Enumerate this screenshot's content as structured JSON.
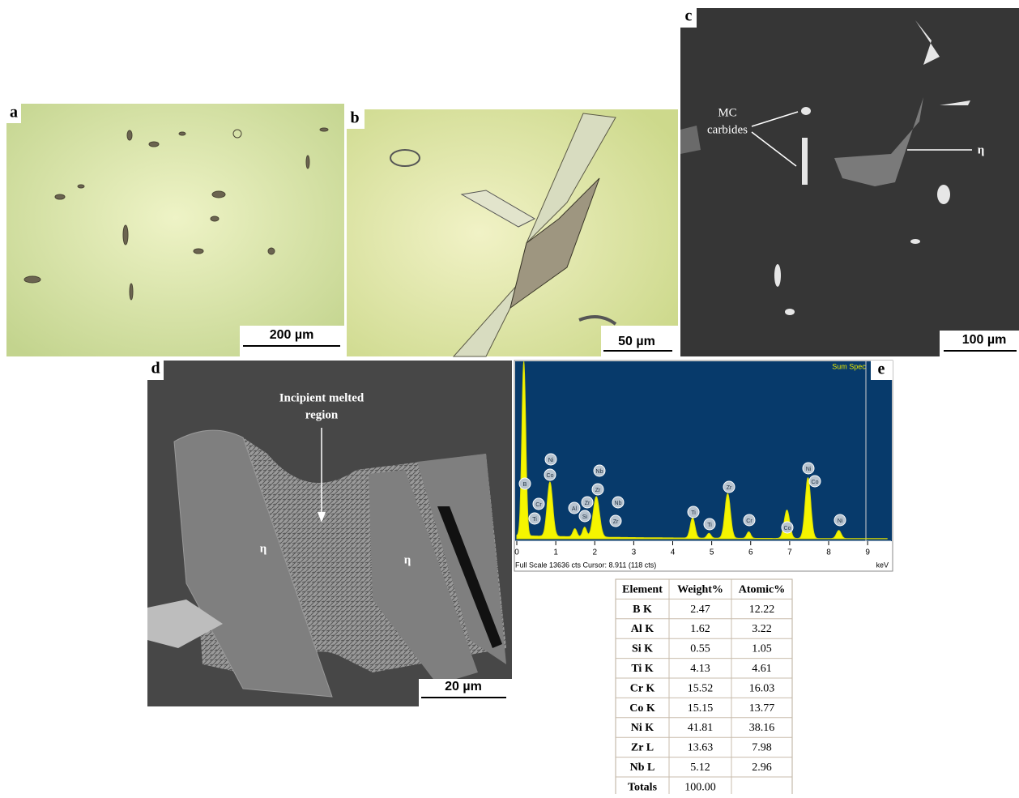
{
  "panels": {
    "a": {
      "label": "a",
      "scale_bar": "200 µm"
    },
    "b": {
      "label": "b",
      "scale_bar": "50 µm"
    },
    "c": {
      "label": "c",
      "scale_bar": "100 µm"
    },
    "d": {
      "label": "d",
      "scale_bar": "20 µm"
    },
    "e": {
      "label": "e"
    }
  },
  "annotations": {
    "mc_carbides": [
      "MC",
      "carbides"
    ],
    "eta_c": "η",
    "incipient": [
      "Incipient melted",
      "region"
    ],
    "eta_d1": "η",
    "eta_d2": "η"
  },
  "spectrum": {
    "label": "Sum Spec",
    "xlim": [
      0,
      9.6
    ],
    "xticks": [
      0,
      1,
      2,
      3,
      4,
      5,
      6,
      7,
      8,
      9
    ],
    "x_unit": "keV",
    "footer": "Full Scale 13636 cts Cursor: 8.911 (118 cts)",
    "peak_labels": [
      "B",
      "Cr",
      "Ti",
      "Ni",
      "Co",
      "Al",
      "Si",
      "Zr",
      "Nb",
      "Zr",
      "Nb",
      "Zr",
      "Ti",
      "Ti",
      "Zr",
      "Cr",
      "Co",
      "Ni",
      "Co",
      "Ni"
    ]
  },
  "table": {
    "header": [
      "Element",
      "Weight%",
      "Atomic%"
    ],
    "rows": [
      [
        "B K",
        "2.47",
        "12.22"
      ],
      [
        "Al K",
        "1.62",
        "3.22"
      ],
      [
        "Si K",
        "0.55",
        "1.05"
      ],
      [
        "Ti K",
        "4.13",
        "4.61"
      ],
      [
        "Cr K",
        "15.52",
        "16.03"
      ],
      [
        "Co K",
        "15.15",
        "13.77"
      ],
      [
        "Ni K",
        "41.81",
        "38.16"
      ],
      [
        "Zr L",
        "13.63",
        "7.98"
      ],
      [
        "Nb L",
        "5.12",
        "2.96"
      ],
      [
        "Totals",
        "100.00"
      ]
    ]
  }
}
